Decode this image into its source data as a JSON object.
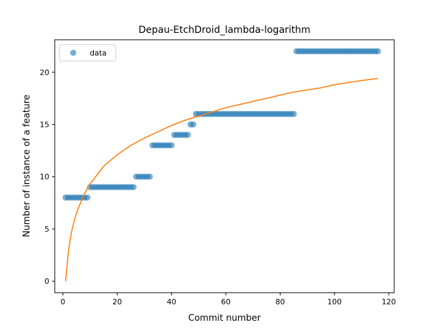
{
  "chart_data": {
    "type": "scatter",
    "title": "Depau-EtchDroid_lambda-logarithm",
    "xlabel": "Commit number",
    "ylabel": "Number of instance of a feature",
    "xlim": [
      -3,
      122
    ],
    "ylim": [
      -1.1,
      23.1
    ],
    "xticks": [
      0,
      20,
      40,
      60,
      80,
      100,
      120
    ],
    "yticks": [
      0,
      5,
      10,
      15,
      20
    ],
    "grid": false,
    "legend": {
      "placement": "top-left",
      "entries": [
        "data"
      ]
    },
    "colors": {
      "data": "#1f77b4",
      "fit": "#ff7f0e"
    },
    "series": [
      {
        "name": "data",
        "kind": "scatter",
        "points": [
          [
            1,
            8
          ],
          [
            2,
            8
          ],
          [
            3,
            8
          ],
          [
            4,
            8
          ],
          [
            5,
            8
          ],
          [
            6,
            8
          ],
          [
            7,
            8
          ],
          [
            8,
            8
          ],
          [
            9,
            8
          ],
          [
            10,
            9
          ],
          [
            11,
            9
          ],
          [
            12,
            9
          ],
          [
            13,
            9
          ],
          [
            14,
            9
          ],
          [
            15,
            9
          ],
          [
            16,
            9
          ],
          [
            17,
            9
          ],
          [
            18,
            9
          ],
          [
            19,
            9
          ],
          [
            20,
            9
          ],
          [
            21,
            9
          ],
          [
            22,
            9
          ],
          [
            23,
            9
          ],
          [
            24,
            9
          ],
          [
            25,
            9
          ],
          [
            26,
            9
          ],
          [
            27,
            10
          ],
          [
            28,
            10
          ],
          [
            29,
            10
          ],
          [
            30,
            10
          ],
          [
            31,
            10
          ],
          [
            32,
            10
          ],
          [
            33,
            13
          ],
          [
            34,
            13
          ],
          [
            35,
            13
          ],
          [
            36,
            13
          ],
          [
            37,
            13
          ],
          [
            38,
            13
          ],
          [
            39,
            13
          ],
          [
            40,
            13
          ],
          [
            41,
            14
          ],
          [
            42,
            14
          ],
          [
            43,
            14
          ],
          [
            44,
            14
          ],
          [
            45,
            14
          ],
          [
            46,
            14
          ],
          [
            47,
            15
          ],
          [
            48,
            15
          ],
          [
            49,
            16
          ],
          [
            50,
            16
          ],
          [
            51,
            16
          ],
          [
            52,
            16
          ],
          [
            53,
            16
          ],
          [
            54,
            16
          ],
          [
            55,
            16
          ],
          [
            56,
            16
          ],
          [
            57,
            16
          ],
          [
            58,
            16
          ],
          [
            59,
            16
          ],
          [
            60,
            16
          ],
          [
            61,
            16
          ],
          [
            62,
            16
          ],
          [
            63,
            16
          ],
          [
            64,
            16
          ],
          [
            65,
            16
          ],
          [
            66,
            16
          ],
          [
            67,
            16
          ],
          [
            68,
            16
          ],
          [
            69,
            16
          ],
          [
            70,
            16
          ],
          [
            71,
            16
          ],
          [
            72,
            16
          ],
          [
            73,
            16
          ],
          [
            74,
            16
          ],
          [
            75,
            16
          ],
          [
            76,
            16
          ],
          [
            77,
            16
          ],
          [
            78,
            16
          ],
          [
            79,
            16
          ],
          [
            80,
            16
          ],
          [
            81,
            16
          ],
          [
            82,
            16
          ],
          [
            83,
            16
          ],
          [
            84,
            16
          ],
          [
            85,
            16
          ],
          [
            86,
            22
          ],
          [
            87,
            22
          ],
          [
            88,
            22
          ],
          [
            89,
            22
          ],
          [
            90,
            22
          ],
          [
            91,
            22
          ],
          [
            92,
            22
          ],
          [
            93,
            22
          ],
          [
            94,
            22
          ],
          [
            95,
            22
          ],
          [
            96,
            22
          ],
          [
            97,
            22
          ],
          [
            98,
            22
          ],
          [
            99,
            22
          ],
          [
            100,
            22
          ],
          [
            101,
            22
          ],
          [
            102,
            22
          ],
          [
            103,
            22
          ],
          [
            104,
            22
          ],
          [
            105,
            22
          ],
          [
            106,
            22
          ],
          [
            107,
            22
          ],
          [
            108,
            22
          ],
          [
            109,
            22
          ],
          [
            110,
            22
          ],
          [
            111,
            22
          ],
          [
            112,
            22
          ],
          [
            113,
            22
          ],
          [
            114,
            22
          ],
          [
            115,
            22
          ],
          [
            116,
            22
          ]
        ]
      },
      {
        "kind": "line",
        "points": [
          [
            1,
            0
          ],
          [
            2,
            2.8
          ],
          [
            3,
            4.5
          ],
          [
            4,
            5.6
          ],
          [
            5,
            6.5
          ],
          [
            6,
            7.2
          ],
          [
            8,
            8.4
          ],
          [
            10,
            9.3
          ],
          [
            15,
            11.0
          ],
          [
            20,
            12.1
          ],
          [
            25,
            13.0
          ],
          [
            30,
            13.7
          ],
          [
            35,
            14.3
          ],
          [
            40,
            14.9
          ],
          [
            45,
            15.4
          ],
          [
            50,
            15.8
          ],
          [
            55,
            16.2
          ],
          [
            60,
            16.6
          ],
          [
            65,
            16.9
          ],
          [
            70,
            17.2
          ],
          [
            75,
            17.5
          ],
          [
            80,
            17.8
          ],
          [
            85,
            18.1
          ],
          [
            90,
            18.3
          ],
          [
            95,
            18.5
          ],
          [
            100,
            18.8
          ],
          [
            105,
            19.0
          ],
          [
            110,
            19.2
          ],
          [
            116,
            19.4
          ]
        ]
      }
    ]
  }
}
